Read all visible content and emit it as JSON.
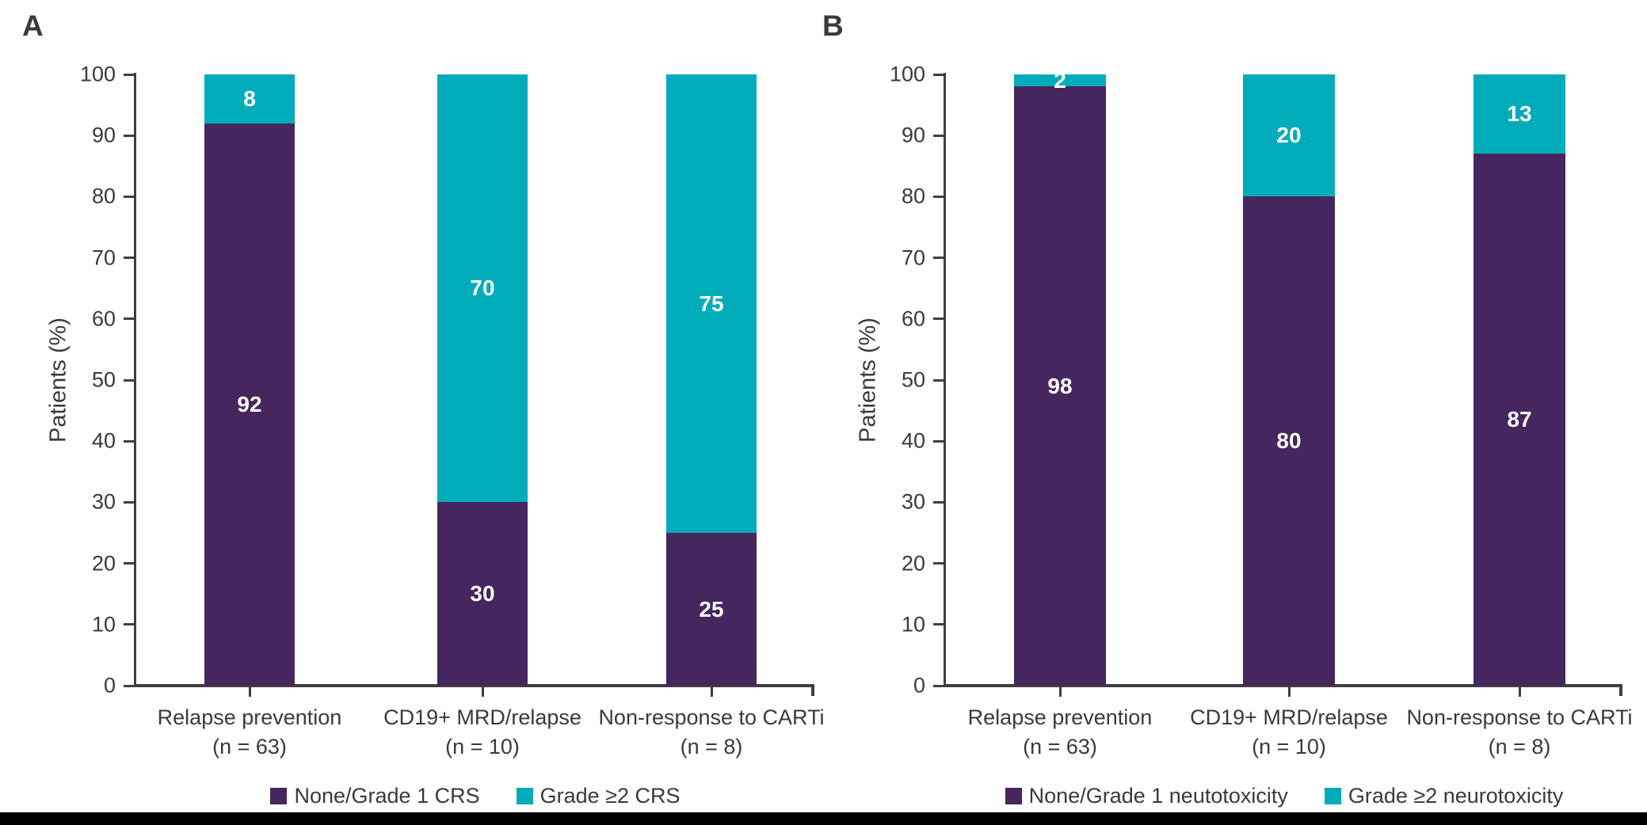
{
  "colors": {
    "purple": "#46265E",
    "teal": "#00ACBA",
    "axis": "#3F3F3F",
    "text": "#3A3A3A",
    "bar_label": "#FFFFFF",
    "footer_bar": "#000000"
  },
  "chart_data": [
    {
      "type": "bar",
      "stacked": true,
      "panel_label": "A",
      "ylabel": "Patients (%)",
      "ylim": [
        0,
        100
      ],
      "y_ticks": [
        0,
        10,
        20,
        30,
        40,
        50,
        60,
        70,
        80,
        90,
        100
      ],
      "grid": false,
      "legend_position": "bottom",
      "categories": [
        "Relapse prevention",
        "CD19+ MRD/relapse",
        "Non-response to CARTi"
      ],
      "category_sublabels": [
        "(n = 63)",
        "(n = 10)",
        "(n = 8)"
      ],
      "series": [
        {
          "name": "None/Grade 1 CRS",
          "color": "#46265E",
          "values": [
            92,
            30,
            25
          ]
        },
        {
          "name": "Grade ≥2 CRS",
          "color": "#00ACBA",
          "values": [
            8,
            70,
            75
          ]
        }
      ]
    },
    {
      "type": "bar",
      "stacked": true,
      "panel_label": "B",
      "ylabel": "Patients (%)",
      "ylim": [
        0,
        100
      ],
      "y_ticks": [
        0,
        10,
        20,
        30,
        40,
        50,
        60,
        70,
        80,
        90,
        100
      ],
      "grid": false,
      "legend_position": "bottom",
      "categories": [
        "Relapse prevention",
        "CD19+ MRD/relapse",
        "Non-response to CARTi"
      ],
      "category_sublabels": [
        "(n = 63)",
        "(n = 10)",
        "(n = 8)"
      ],
      "series": [
        {
          "name": "None/Grade 1 neutotoxicity",
          "color": "#46265E",
          "values": [
            98,
            80,
            87
          ]
        },
        {
          "name": "Grade ≥2 neurotoxicity",
          "color": "#00ACBA",
          "values": [
            2,
            20,
            13
          ]
        }
      ]
    }
  ]
}
